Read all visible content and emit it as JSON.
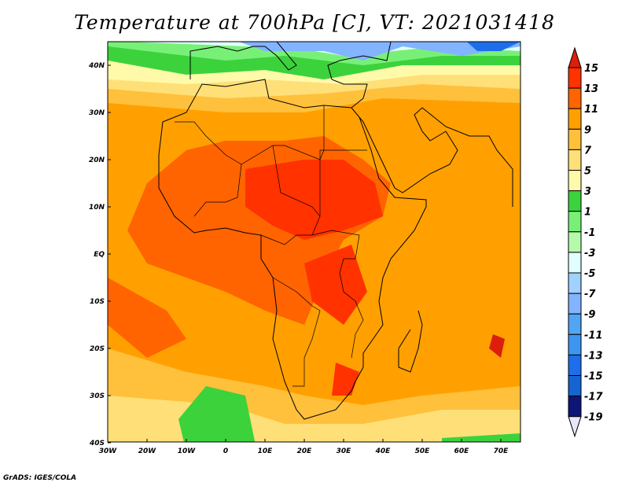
{
  "title": "Temperature at 700hPa [C], VT: 2021031418",
  "credit": "GrADS: IGES/COLA",
  "lat_labels": [
    "40N",
    "30N",
    "20N",
    "10N",
    "EQ",
    "10S",
    "20S",
    "30S",
    "40S"
  ],
  "lon_labels": [
    "30W",
    "20W",
    "10W",
    "0",
    "10E",
    "20E",
    "30E",
    "40E",
    "50E",
    "60E",
    "70E"
  ],
  "colorbar": {
    "labels": [
      "15",
      "13",
      "11",
      "9",
      "7",
      "5",
      "3",
      "1",
      "-1",
      "-3",
      "-5",
      "-7",
      "-9",
      "-11",
      "-13",
      "-15",
      "-17",
      "-19"
    ],
    "colors": [
      "#dc1e0a",
      "#ff3200",
      "#ff6400",
      "#ffa000",
      "#ffc03c",
      "#ffe078",
      "#fffaaa",
      "#3cd23c",
      "#78f078",
      "#b4faaa",
      "#e1ffff",
      "#a0d2ff",
      "#82b4ff",
      "#50a5f5",
      "#3c96f0",
      "#1e6eeb",
      "#1464d2",
      "#0f1478",
      "#e6e6ff"
    ]
  }
}
